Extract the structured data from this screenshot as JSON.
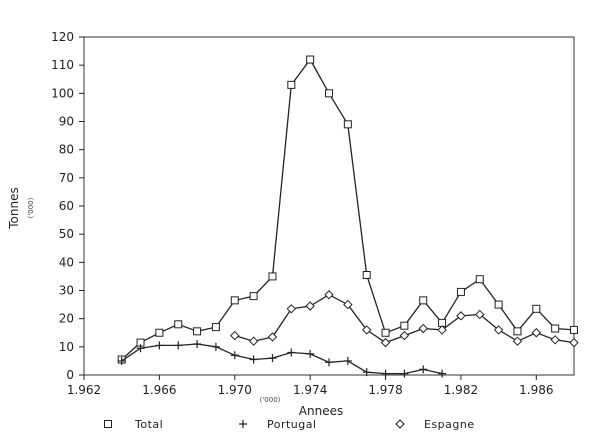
{
  "chart_data": {
    "type": "line",
    "xlabel": "Annees",
    "xlabel_note": "('000)",
    "ylabel": "Tonnes",
    "ylabel_note": "('000)",
    "xlim": [
      1962,
      1988
    ],
    "ylim": [
      0,
      120
    ],
    "x_ticks": [
      1962,
      1966,
      1970,
      1974,
      1978,
      1982,
      1986
    ],
    "x_tick_labels": [
      "1.962",
      "1.966",
      "1.970",
      "1.974",
      "1.978",
      "1.982",
      "1.986"
    ],
    "y_ticks": [
      0,
      10,
      20,
      30,
      40,
      50,
      60,
      70,
      80,
      90,
      100,
      110,
      120
    ],
    "y_tick_labels": [
      "0",
      "10",
      "20",
      "30",
      "40",
      "50",
      "60",
      "70",
      "80",
      "90",
      "100",
      "110",
      "120"
    ],
    "grid": false,
    "legend_position": "bottom",
    "series": [
      {
        "name": "Total",
        "marker": "square",
        "x": [
          1964,
          1965,
          1966,
          1967,
          1968,
          1969,
          1970,
          1971,
          1972,
          1973,
          1974,
          1975,
          1976,
          1977,
          1978,
          1979,
          1980,
          1981,
          1982,
          1983,
          1984,
          1985,
          1986,
          1987,
          1988
        ],
        "values": [
          5.5,
          11.5,
          15,
          18,
          15.5,
          17,
          26.5,
          28,
          35,
          103,
          112,
          100,
          89,
          35.5,
          15,
          17.5,
          26.5,
          18.5,
          29.5,
          34,
          25,
          15.5,
          23.5,
          16.5,
          16
        ]
      },
      {
        "name": "Portugal",
        "marker": "plus",
        "x": [
          1964,
          1965,
          1966,
          1967,
          1968,
          1969,
          1970,
          1971,
          1972,
          1973,
          1974,
          1975,
          1976,
          1977,
          1978,
          1979,
          1980,
          1981
        ],
        "values": [
          5,
          9.5,
          10.5,
          10.5,
          11,
          10,
          7,
          5.5,
          6,
          8,
          7.5,
          4.5,
          5,
          1,
          0.5,
          0.5,
          2,
          0.5
        ]
      },
      {
        "name": "Espagne",
        "marker": "diamond",
        "x": [
          1970,
          1971,
          1972,
          1973,
          1974,
          1975,
          1976,
          1977,
          1978,
          1979,
          1980,
          1981,
          1982,
          1983,
          1984,
          1985,
          1986,
          1987,
          1988
        ],
        "values": [
          14,
          12,
          13.5,
          23.5,
          24.5,
          28.5,
          25,
          16,
          11.5,
          14,
          16.5,
          16,
          21,
          21.5,
          16,
          12,
          15,
          12.5,
          11.5
        ]
      }
    ]
  },
  "colors": {
    "ink": "#222222",
    "background": "#ffffff"
  }
}
